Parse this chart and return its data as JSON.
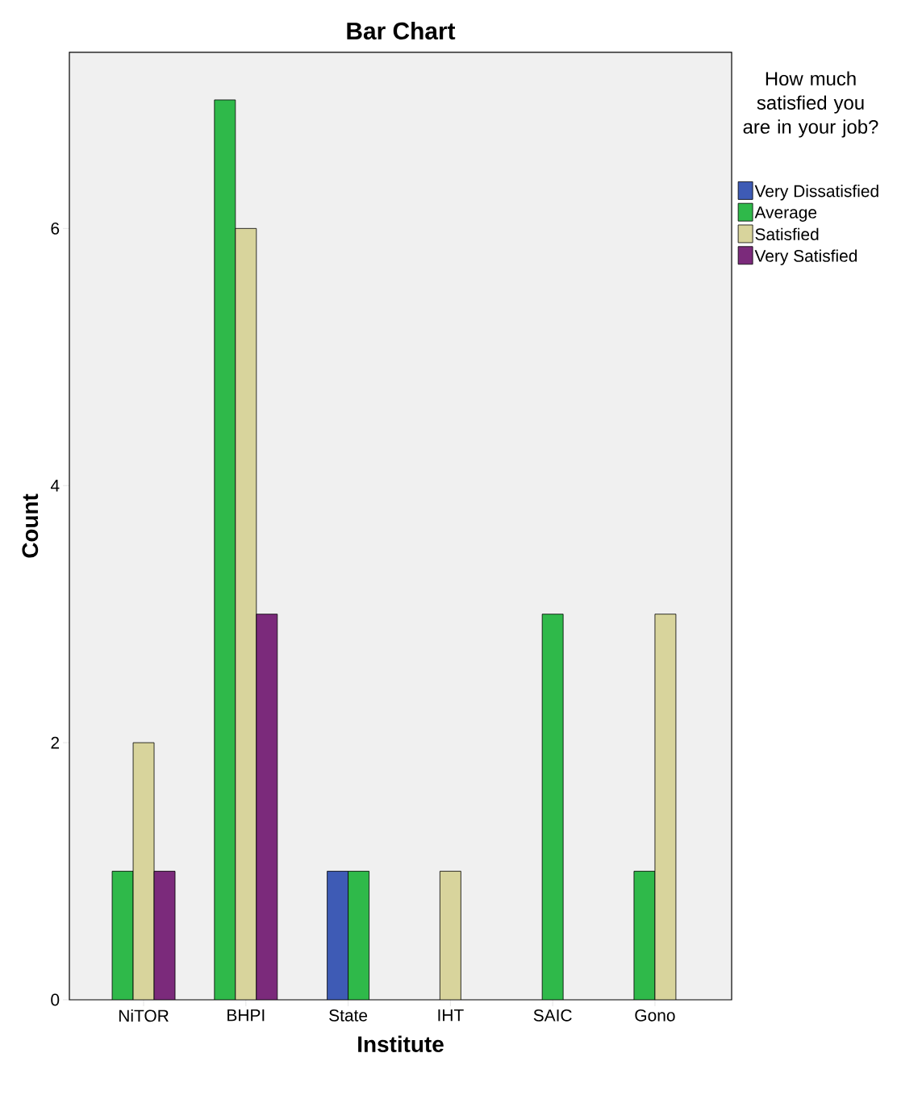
{
  "chart_data": {
    "type": "bar",
    "title": "Bar Chart",
    "xlabel": "Institute",
    "ylabel": "Count",
    "legend_title": "How much satisfied you are in your job?",
    "categories": [
      "NiTOR",
      "BHPI",
      "State",
      "IHT",
      "SAIC",
      "Gono"
    ],
    "series": [
      {
        "name": "Very Dissatisfied",
        "color": "#3e5bb5",
        "values": [
          null,
          null,
          1,
          null,
          null,
          null
        ]
      },
      {
        "name": "Average",
        "color": "#2fb94a",
        "values": [
          1,
          7,
          1,
          null,
          3,
          1
        ]
      },
      {
        "name": "Satisfied",
        "color": "#d8d49c",
        "values": [
          2,
          6,
          null,
          1,
          null,
          3
        ]
      },
      {
        "name": "Very Satisfied",
        "color": "#7b2a7b",
        "values": [
          1,
          3,
          null,
          null,
          null,
          null
        ]
      }
    ],
    "ylim": [
      0,
      7.37
    ],
    "yticks": [
      0,
      2,
      4,
      6
    ],
    "grid": false,
    "legend": "top right"
  }
}
